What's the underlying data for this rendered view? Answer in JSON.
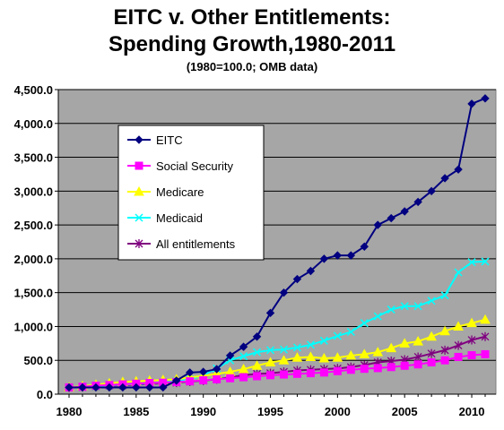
{
  "header": {
    "title_line1": "EITC v. Other Entitlements:",
    "title_line2": "Spending Growth,1980-2011",
    "subtitle": "(1980=100.0; OMB data)"
  },
  "chart_data": {
    "type": "line",
    "title": "EITC v. Other Entitlements: Spending Growth,1980-2011",
    "subtitle": "(1980=100.0; OMB data)",
    "xlabel": "",
    "ylabel": "",
    "xlim": [
      1980,
      2011
    ],
    "ylim": [
      0,
      4500
    ],
    "x_ticks": [
      1980,
      1985,
      1990,
      1995,
      2000,
      2005,
      2010
    ],
    "y_ticks": [
      "0.0",
      "500.0",
      "1,000.0",
      "1,500.0",
      "2,000.0",
      "2,500.0",
      "3,000.0",
      "3,500.0",
      "4,000.0",
      "4,500.0"
    ],
    "grid": "horizontal",
    "plot_background": "#a6a6a6",
    "legend_position": "upper-left",
    "x": [
      1980,
      1981,
      1982,
      1983,
      1984,
      1985,
      1986,
      1987,
      1988,
      1989,
      1990,
      1991,
      1992,
      1993,
      1994,
      1995,
      1996,
      1997,
      1998,
      1999,
      2000,
      2001,
      2002,
      2003,
      2004,
      2005,
      2006,
      2007,
      2008,
      2009,
      2010,
      2011
    ],
    "series": [
      {
        "name": "EITC",
        "color": "#000080",
        "marker": "diamond",
        "values": [
          100,
          100,
          100,
          100,
          100,
          100,
          100,
          100,
          200,
          320,
          330,
          370,
          570,
          700,
          850,
          1200,
          1500,
          1700,
          1820,
          2000,
          2050,
          2050,
          2180,
          2500,
          2600,
          2700,
          2840,
          3000,
          3190,
          3320,
          4290,
          4370
        ]
      },
      {
        "name": "Social Security",
        "color": "#ff00ff",
        "marker": "square",
        "values": [
          100,
          110,
          125,
          135,
          145,
          155,
          165,
          170,
          180,
          190,
          205,
          220,
          235,
          250,
          265,
          280,
          290,
          300,
          310,
          320,
          340,
          360,
          375,
          385,
          400,
          420,
          440,
          470,
          500,
          550,
          575,
          590
        ]
      },
      {
        "name": "Medicare",
        "color": "#ffff00",
        "marker": "triangle",
        "values": [
          100,
          120,
          140,
          160,
          180,
          190,
          200,
          210,
          220,
          250,
          270,
          300,
          330,
          370,
          420,
          470,
          500,
          540,
          550,
          530,
          540,
          570,
          590,
          620,
          680,
          750,
          780,
          850,
          930,
          1000,
          1050,
          1100
        ]
      },
      {
        "name": "Medicaid",
        "color": "#00ffff",
        "marker": "x",
        "values": [
          100,
          110,
          120,
          130,
          140,
          150,
          160,
          175,
          190,
          220,
          280,
          380,
          500,
          560,
          620,
          650,
          660,
          690,
          730,
          790,
          860,
          920,
          1050,
          1150,
          1250,
          1300,
          1300,
          1380,
          1460,
          1800,
          1950,
          1960
        ]
      },
      {
        "name": "All entitlements",
        "color": "#800080",
        "marker": "star",
        "values": [
          100,
          105,
          115,
          125,
          130,
          140,
          150,
          160,
          170,
          185,
          200,
          220,
          250,
          280,
          300,
          310,
          330,
          350,
          360,
          370,
          380,
          400,
          430,
          470,
          490,
          510,
          550,
          600,
          650,
          720,
          800,
          850
        ]
      }
    ]
  }
}
